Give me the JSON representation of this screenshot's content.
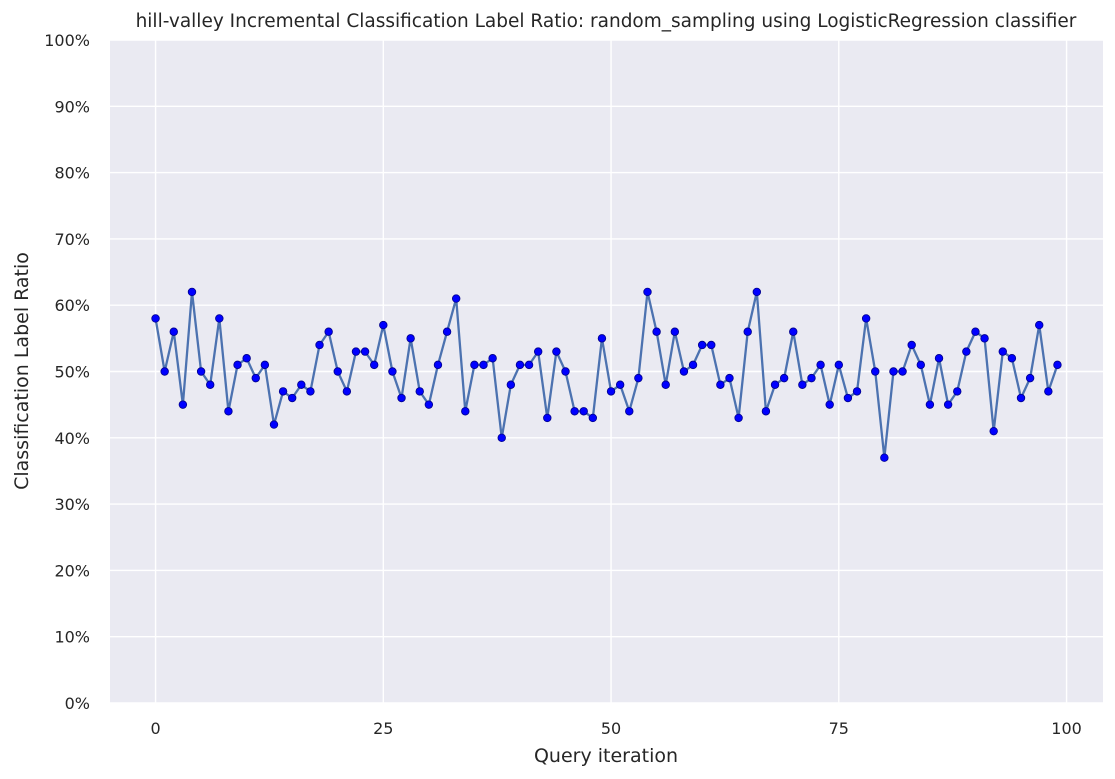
{
  "chart_data": {
    "type": "line",
    "title": "hill-valley Incremental Classification Label Ratio: random_sampling using LogisticRegression classifier",
    "xlabel": "Query iteration",
    "ylabel": "Classification Label Ratio",
    "xlim": [
      -5,
      104
    ],
    "ylim": [
      0,
      100
    ],
    "xticks": [
      0,
      25,
      50,
      75,
      100
    ],
    "yticks": [
      0,
      10,
      20,
      30,
      40,
      50,
      60,
      70,
      80,
      90,
      100
    ],
    "ytick_labels": [
      "0%",
      "10%",
      "20%",
      "30%",
      "40%",
      "50%",
      "60%",
      "70%",
      "80%",
      "90%",
      "100%"
    ],
    "grid": true,
    "background": "#eaeaf2",
    "grid_color": "#ffffff",
    "line_color": "#4c72b0",
    "marker_color": "#0000ff",
    "marker_edge_color": "#00008b",
    "x": [
      0,
      1,
      2,
      3,
      4,
      5,
      6,
      7,
      8,
      9,
      10,
      11,
      12,
      13,
      14,
      15,
      16,
      17,
      18,
      19,
      20,
      21,
      22,
      23,
      24,
      25,
      26,
      27,
      28,
      29,
      30,
      31,
      32,
      33,
      34,
      35,
      36,
      37,
      38,
      39,
      40,
      41,
      42,
      43,
      44,
      45,
      46,
      47,
      48,
      49,
      50,
      51,
      52,
      53,
      54,
      55,
      56,
      57,
      58,
      59,
      60,
      61,
      62,
      63,
      64,
      65,
      66,
      67,
      68,
      69,
      70,
      71,
      72,
      73,
      74,
      75,
      76,
      77,
      78,
      79,
      80,
      81,
      82,
      83,
      84,
      85,
      86,
      87,
      88,
      89,
      90,
      91,
      92,
      93,
      94,
      95,
      96,
      97,
      98,
      99
    ],
    "values": [
      58,
      50,
      56,
      45,
      62,
      50,
      48,
      58,
      44,
      51,
      52,
      49,
      51,
      42,
      47,
      46,
      48,
      47,
      54,
      56,
      50,
      47,
      53,
      53,
      51,
      57,
      50,
      46,
      55,
      47,
      45,
      51,
      56,
      61,
      44,
      51,
      51,
      52,
      40,
      48,
      51,
      51,
      53,
      43,
      53,
      50,
      44,
      44,
      43,
      55,
      47,
      48,
      44,
      49,
      62,
      56,
      48,
      56,
      50,
      51,
      54,
      54,
      48,
      49,
      43,
      56,
      62,
      44,
      48,
      49,
      56,
      48,
      49,
      51,
      45,
      51,
      46,
      47,
      58,
      50,
      37,
      50,
      50,
      54,
      51,
      45,
      52,
      45,
      47,
      53,
      56,
      55,
      41,
      53,
      52,
      46,
      49,
      57,
      47,
      51
    ]
  }
}
